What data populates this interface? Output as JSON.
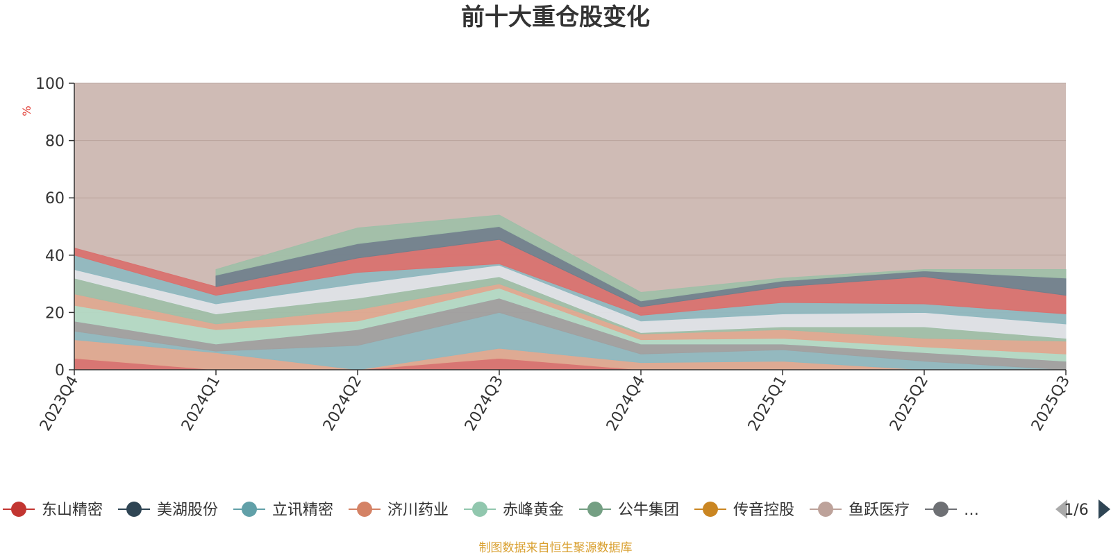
{
  "colors": {
    "background_fill": "#cfbbb5",
    "grid": "#b9a39c",
    "axis": "#333333",
    "unit": "#e0372f",
    "source": "#d9a030",
    "pager_active": "#2f4554",
    "pager_inactive": "#aaaaaa"
  },
  "chart_data": {
    "type": "area",
    "title": "前十大重仓股变化",
    "ylabel": "%",
    "ylim": [
      0,
      100
    ],
    "yticks": [
      0,
      20,
      40,
      60,
      80,
      100
    ],
    "categories": [
      "2023Q4",
      "2024Q1",
      "2024Q2",
      "2024Q3",
      "2024Q4",
      "2025Q1",
      "2025Q2",
      "2025Q3"
    ],
    "series": [
      {
        "name": "东山精密",
        "color": "#c23531",
        "values": [
          null,
          null,
          null,
          null,
          null,
          null,
          null,
          null
        ]
      },
      {
        "name": "美湖股份",
        "color": "#2f4554",
        "values": [
          null,
          null,
          null,
          null,
          null,
          null,
          null,
          null
        ]
      },
      {
        "name": "立讯精密",
        "color": "#61a0a8",
        "values": [
          null,
          null,
          null,
          null,
          null,
          null,
          null,
          null
        ]
      },
      {
        "name": "济川药业",
        "color": "#d48265",
        "values": [
          null,
          null,
          null,
          null,
          null,
          null,
          null,
          null
        ]
      },
      {
        "name": "赤峰黄金",
        "color": "#91c7ae",
        "values": [
          null,
          null,
          null,
          null,
          null,
          null,
          null,
          null
        ]
      },
      {
        "name": "公牛集团",
        "color": "#749f83",
        "values": [
          null,
          null,
          null,
          null,
          null,
          null,
          null,
          null
        ]
      },
      {
        "name": "传音控股",
        "color": "#ca8622",
        "values": [
          null,
          null,
          null,
          null,
          null,
          null,
          null,
          null
        ]
      },
      {
        "name": "鱼跃医疗",
        "color": "#bda29a",
        "values": [
          null,
          null,
          null,
          null,
          null,
          null,
          null,
          null
        ]
      },
      {
        "name": "…",
        "color": "#6e7074",
        "values": [
          null,
          null,
          null,
          null,
          null,
          null,
          null,
          null
        ]
      }
    ],
    "bands": [
      {
        "color": "#d9706e",
        "values": [
          [
            0,
            4
          ],
          [
            0,
            0
          ],
          [
            0,
            0
          ],
          [
            0,
            4
          ],
          [
            0,
            0
          ],
          [
            0,
            0
          ],
          [
            0,
            0
          ],
          [
            0,
            0
          ]
        ]
      },
      {
        "color": "#e0a890",
        "values": [
          [
            4,
            10.5
          ],
          [
            0,
            6
          ],
          [
            0,
            0
          ],
          [
            4,
            7.5
          ],
          [
            0,
            2.5
          ],
          [
            0,
            3
          ],
          [
            0,
            0
          ],
          [
            0,
            0
          ]
        ]
      },
      {
        "color": "#8fb9c0",
        "values": [
          [
            10.5,
            13.5
          ],
          [
            6,
            6.5
          ],
          [
            0,
            8.5
          ],
          [
            7.5,
            20
          ],
          [
            2.5,
            5.5
          ],
          [
            3,
            7
          ],
          [
            0,
            3
          ],
          [
            0,
            0
          ]
        ]
      },
      {
        "color": "#a0a0a0",
        "values": [
          [
            13.5,
            17
          ],
          [
            6.5,
            9
          ],
          [
            8.5,
            14
          ],
          [
            20,
            25
          ],
          [
            5.5,
            9
          ],
          [
            7,
            9
          ],
          [
            3,
            6
          ],
          [
            0,
            3
          ]
        ]
      },
      {
        "color": "#b3dac6",
        "values": [
          [
            17,
            22.5
          ],
          [
            9,
            14
          ],
          [
            14,
            17
          ],
          [
            25,
            28.5
          ],
          [
            9,
            10.5
          ],
          [
            9,
            11
          ],
          [
            6,
            8
          ],
          [
            3,
            5.5
          ]
        ]
      },
      {
        "color": "#e0a890",
        "values": [
          [
            22.5,
            26.5
          ],
          [
            14,
            16
          ],
          [
            17,
            21
          ],
          [
            28.5,
            30
          ],
          [
            10.5,
            12.5
          ],
          [
            11,
            14
          ],
          [
            8,
            11
          ],
          [
            5.5,
            10
          ]
        ]
      },
      {
        "color": "#9fbfa8",
        "values": [
          [
            26.5,
            32
          ],
          [
            16,
            19.5
          ],
          [
            21,
            25
          ],
          [
            30,
            32.5
          ],
          [
            12.5,
            13
          ],
          [
            14,
            15
          ],
          [
            11,
            15
          ],
          [
            10,
            11
          ]
        ]
      },
      {
        "color": "#dfe3e8",
        "values": [
          [
            32,
            35
          ],
          [
            19.5,
            23
          ],
          [
            25,
            30
          ],
          [
            32.5,
            36.5
          ],
          [
            13,
            17
          ],
          [
            15,
            19.5
          ],
          [
            15,
            20
          ],
          [
            11,
            16
          ]
        ]
      },
      {
        "color": "#8fb9c0",
        "values": [
          [
            35,
            40
          ],
          [
            23,
            26
          ],
          [
            30,
            34
          ],
          [
            36.5,
            37
          ],
          [
            17,
            19
          ],
          [
            19.5,
            23.5
          ],
          [
            20,
            23
          ],
          [
            16,
            19.5
          ]
        ]
      },
      {
        "color": "#d9706e",
        "values": [
          [
            40,
            42.5
          ],
          [
            26,
            29
          ],
          [
            34,
            39
          ],
          [
            37,
            45.5
          ],
          [
            19,
            22
          ],
          [
            23.5,
            29
          ],
          [
            23,
            32.5
          ],
          [
            19.5,
            26
          ]
        ]
      },
      {
        "color": "#6f7f8c",
        "values": [
          [
            null,
            null
          ],
          [
            29,
            33
          ],
          [
            39,
            44
          ],
          [
            45.5,
            50
          ],
          [
            22,
            24
          ],
          [
            29,
            31
          ],
          [
            32.5,
            34.5
          ],
          [
            26,
            32
          ]
        ]
      },
      {
        "color": "#9fbfa8",
        "values": [
          [
            null,
            null
          ],
          [
            33,
            35
          ],
          [
            44,
            49.5
          ],
          [
            50,
            54
          ],
          [
            24,
            27
          ],
          [
            31,
            32
          ],
          [
            34.5,
            35
          ],
          [
            32,
            35
          ]
        ]
      }
    ]
  },
  "legend": {
    "items": [
      "东山精密",
      "美湖股份",
      "立讯精密",
      "济川药业",
      "赤峰黄金",
      "公牛集团",
      "传音控股",
      "鱼跃医疗",
      "…"
    ],
    "page": "1/6"
  },
  "source": "制图数据来自恒生聚源数据库"
}
